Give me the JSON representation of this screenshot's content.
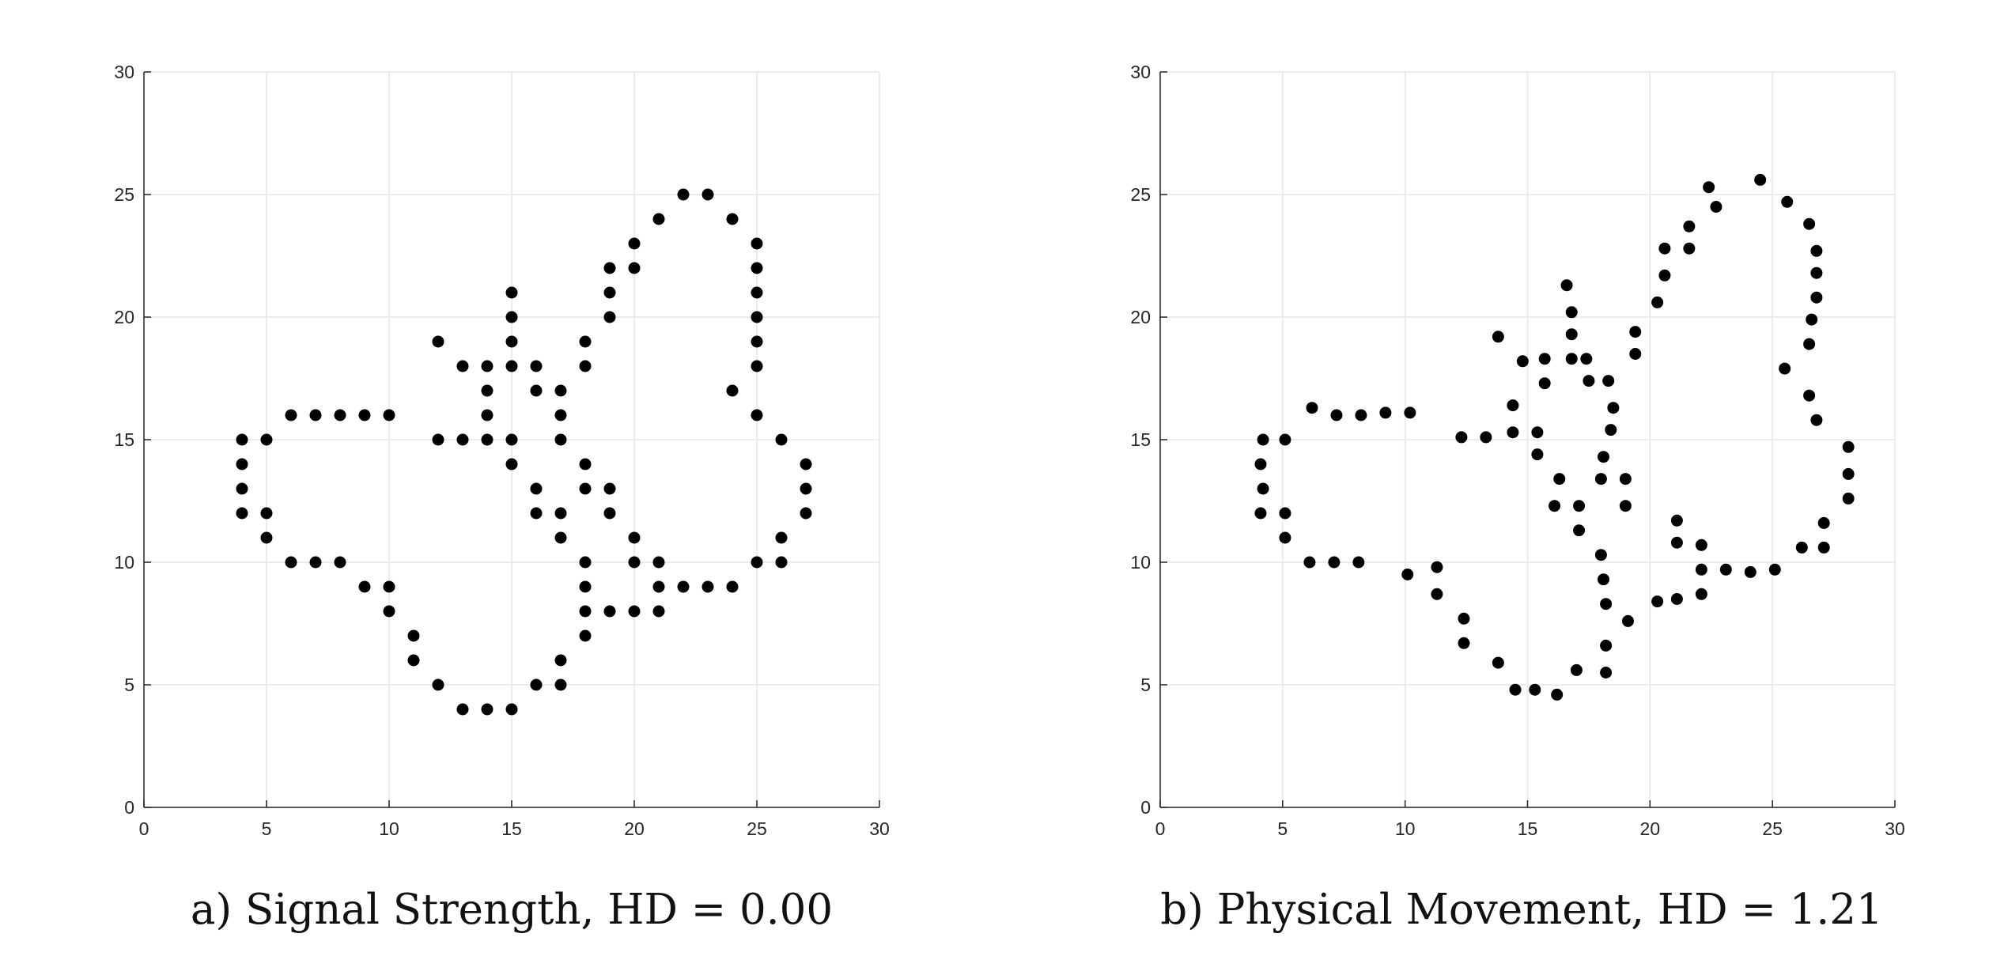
{
  "chart_data": [
    {
      "type": "scatter",
      "xlim": [
        0,
        30
      ],
      "ylim": [
        0,
        30
      ],
      "xticks": [
        "0",
        "5",
        "10",
        "15",
        "20",
        "25",
        "30"
      ],
      "yticks": [
        "0",
        "5",
        "10",
        "15",
        "20",
        "25",
        "30"
      ],
      "grid": true,
      "marker_color": "#000000",
      "caption": "a) Signal Strength, HD = 0.00",
      "points": [
        [
          4,
          15
        ],
        [
          4,
          14
        ],
        [
          4,
          13
        ],
        [
          4,
          12
        ],
        [
          5,
          15
        ],
        [
          5,
          12
        ],
        [
          5,
          11
        ],
        [
          6,
          16
        ],
        [
          7,
          16
        ],
        [
          8,
          16
        ],
        [
          9,
          16
        ],
        [
          10,
          16
        ],
        [
          6,
          10
        ],
        [
          7,
          10
        ],
        [
          8,
          10
        ],
        [
          9,
          9
        ],
        [
          10,
          9
        ],
        [
          10,
          8
        ],
        [
          11,
          7
        ],
        [
          11,
          6
        ],
        [
          12,
          5
        ],
        [
          13,
          4
        ],
        [
          14,
          4
        ],
        [
          15,
          4
        ],
        [
          16,
          5
        ],
        [
          17,
          5
        ],
        [
          17,
          6
        ],
        [
          12,
          19
        ],
        [
          13,
          18
        ],
        [
          14,
          18
        ],
        [
          14,
          17
        ],
        [
          14,
          16
        ],
        [
          12,
          15
        ],
        [
          13,
          15
        ],
        [
          14,
          15
        ],
        [
          15,
          21
        ],
        [
          15,
          20
        ],
        [
          15,
          19
        ],
        [
          15,
          18
        ],
        [
          15,
          15
        ],
        [
          15,
          14
        ],
        [
          16,
          18
        ],
        [
          16,
          17
        ],
        [
          17,
          17
        ],
        [
          17,
          16
        ],
        [
          17,
          15
        ],
        [
          16,
          13
        ],
        [
          16,
          12
        ],
        [
          17,
          12
        ],
        [
          17,
          11
        ],
        [
          18,
          19
        ],
        [
          18,
          18
        ],
        [
          18,
          14
        ],
        [
          18,
          13
        ],
        [
          19,
          13
        ],
        [
          19,
          12
        ],
        [
          18,
          10
        ],
        [
          18,
          9
        ],
        [
          18,
          8
        ],
        [
          18,
          7
        ],
        [
          19,
          8
        ],
        [
          20,
          8
        ],
        [
          19,
          22
        ],
        [
          19,
          21
        ],
        [
          19,
          20
        ],
        [
          20,
          23
        ],
        [
          20,
          22
        ],
        [
          21,
          24
        ],
        [
          22,
          25
        ],
        [
          23,
          25
        ],
        [
          24,
          24
        ],
        [
          25,
          23
        ],
        [
          25,
          22
        ],
        [
          25,
          21
        ],
        [
          25,
          20
        ],
        [
          25,
          19
        ],
        [
          25,
          18
        ],
        [
          24,
          17
        ],
        [
          25,
          16
        ],
        [
          26,
          15
        ],
        [
          27,
          14
        ],
        [
          27,
          13
        ],
        [
          27,
          12
        ],
        [
          26,
          11
        ],
        [
          26,
          10
        ],
        [
          25,
          10
        ],
        [
          20,
          11
        ],
        [
          20,
          10
        ],
        [
          21,
          10
        ],
        [
          21,
          9
        ],
        [
          21,
          8
        ],
        [
          22,
          9
        ],
        [
          23,
          9
        ],
        [
          24,
          9
        ]
      ]
    },
    {
      "type": "scatter",
      "xlim": [
        0,
        30
      ],
      "ylim": [
        0,
        30
      ],
      "xticks": [
        "0",
        "5",
        "10",
        "15",
        "20",
        "25",
        "30"
      ],
      "yticks": [
        "0",
        "5",
        "10",
        "15",
        "20",
        "25",
        "30"
      ],
      "grid": true,
      "marker_color": "#000000",
      "caption": "b) Physical Movement, HD = 1.21",
      "points": [
        [
          4.2,
          15
        ],
        [
          4.1,
          14
        ],
        [
          4.2,
          13
        ],
        [
          4.1,
          12
        ],
        [
          5.1,
          15
        ],
        [
          5.1,
          12
        ],
        [
          5.1,
          11
        ],
        [
          6.2,
          16.3
        ],
        [
          7.2,
          16
        ],
        [
          8.2,
          16
        ],
        [
          9.2,
          16.1
        ],
        [
          10.2,
          16.1
        ],
        [
          6.1,
          10
        ],
        [
          7.1,
          10
        ],
        [
          8.1,
          10
        ],
        [
          10.1,
          9.5
        ],
        [
          11.3,
          9.8
        ],
        [
          11.3,
          8.7
        ],
        [
          12.4,
          7.7
        ],
        [
          12.4,
          6.7
        ],
        [
          13.8,
          5.9
        ],
        [
          14.5,
          4.8
        ],
        [
          15.3,
          4.8
        ],
        [
          16.2,
          4.6
        ],
        [
          17,
          5.6
        ],
        [
          18.2,
          5.5
        ],
        [
          18.2,
          6.6
        ],
        [
          18.2,
          8.3
        ],
        [
          18.1,
          9.3
        ],
        [
          18,
          10.3
        ],
        [
          19.1,
          7.6
        ],
        [
          13.8,
          19.2
        ],
        [
          14.8,
          18.2
        ],
        [
          15.7,
          18.3
        ],
        [
          15.7,
          17.3
        ],
        [
          17.4,
          18.3
        ],
        [
          17.5,
          17.4
        ],
        [
          16.6,
          21.3
        ],
        [
          16.8,
          20.2
        ],
        [
          16.8,
          19.3
        ],
        [
          16.8,
          18.3
        ],
        [
          12.3,
          15.1
        ],
        [
          13.3,
          15.1
        ],
        [
          14.4,
          15.3
        ],
        [
          14.4,
          16.4
        ],
        [
          15.4,
          15.3
        ],
        [
          15.4,
          14.4
        ],
        [
          16.1,
          12.3
        ],
        [
          16.3,
          13.4
        ],
        [
          17.1,
          12.3
        ],
        [
          17.1,
          11.3
        ],
        [
          18,
          13.4
        ],
        [
          18.1,
          14.3
        ],
        [
          18.3,
          17.4
        ],
        [
          18.5,
          16.3
        ],
        [
          18.4,
          15.4
        ],
        [
          19,
          13.4
        ],
        [
          19,
          12.3
        ],
        [
          19.4,
          19.4
        ],
        [
          19.4,
          18.5
        ],
        [
          20.3,
          20.6
        ],
        [
          20.6,
          21.7
        ],
        [
          20.6,
          22.8
        ],
        [
          21.6,
          22.8
        ],
        [
          21.6,
          23.7
        ],
        [
          22.4,
          25.3
        ],
        [
          22.7,
          24.5
        ],
        [
          24.5,
          25.6
        ],
        [
          25.6,
          24.7
        ],
        [
          26.5,
          23.8
        ],
        [
          26.8,
          22.7
        ],
        [
          26.8,
          21.8
        ],
        [
          26.8,
          20.8
        ],
        [
          26.6,
          19.9
        ],
        [
          26.5,
          18.9
        ],
        [
          25.5,
          17.9
        ],
        [
          26.5,
          16.8
        ],
        [
          26.8,
          15.8
        ],
        [
          28.1,
          14.7
        ],
        [
          28.1,
          13.6
        ],
        [
          28.1,
          12.6
        ],
        [
          27.1,
          11.6
        ],
        [
          27.1,
          10.6
        ],
        [
          26.2,
          10.6
        ],
        [
          25.1,
          9.7
        ],
        [
          20.3,
          8.4
        ],
        [
          21.1,
          8.5
        ],
        [
          22.1,
          8.7
        ],
        [
          21.1,
          10.8
        ],
        [
          21.1,
          11.7
        ],
        [
          22.1,
          10.7
        ],
        [
          22.1,
          9.7
        ],
        [
          23.1,
          9.7
        ],
        [
          24.1,
          9.6
        ]
      ]
    }
  ]
}
